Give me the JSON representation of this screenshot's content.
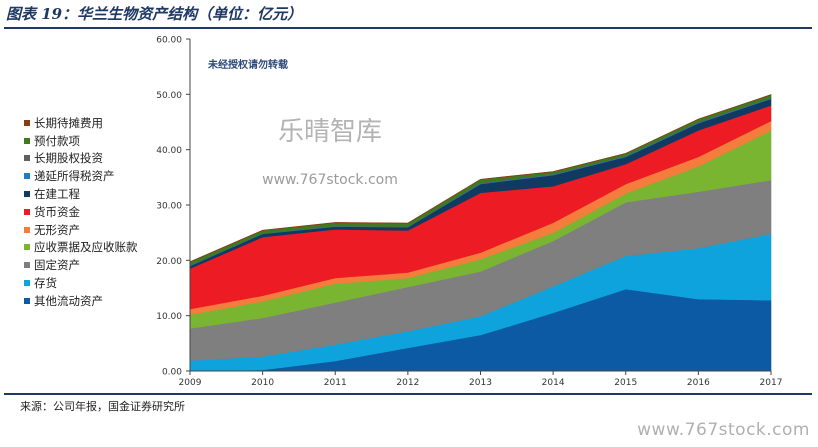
{
  "header": {
    "title": "图表 19：华兰生物资产结构（单位：亿元）"
  },
  "footer": {
    "source": "来源：公司年报，国金证券研究所",
    "watermark_url": "www.767stock.com"
  },
  "watermarks": {
    "notice": "未经授权请勿转载",
    "brand": "乐晴智库",
    "url": "www.767stock.com"
  },
  "chart_data": {
    "type": "area",
    "stacked": true,
    "x": [
      "2009",
      "2010",
      "2011",
      "2012",
      "2013",
      "2014",
      "2015",
      "2016",
      "2017"
    ],
    "ylim": [
      0,
      60
    ],
    "yticks": [
      "0.00",
      "10.00",
      "20.00",
      "30.00",
      "40.00",
      "50.00",
      "60.00"
    ],
    "grid": false,
    "legend_position": "left",
    "series": [
      {
        "name": "其他流动资产",
        "color": "#0b5aa3",
        "values": [
          0.0,
          0.2,
          1.8,
          4.2,
          6.5,
          10.5,
          14.8,
          13.0,
          12.8
        ]
      },
      {
        "name": "存货",
        "color": "#0ea3dc",
        "values": [
          1.9,
          2.4,
          3.0,
          3.0,
          3.4,
          4.8,
          6.0,
          9.2,
          12.0
        ]
      },
      {
        "name": "固定资产",
        "color": "#7f7f7f",
        "values": [
          5.8,
          7.0,
          7.6,
          8.0,
          8.1,
          8.2,
          9.7,
          10.2,
          9.7
        ]
      },
      {
        "name": "应收票据及应收账款",
        "color": "#7ab531",
        "values": [
          2.5,
          3.0,
          3.4,
          1.6,
          2.2,
          1.5,
          1.6,
          4.6,
          9.0
        ]
      },
      {
        "name": "无形资产",
        "color": "#f47c3c",
        "values": [
          1.0,
          1.0,
          1.0,
          1.0,
          1.2,
          1.8,
          1.7,
          1.7,
          1.7
        ]
      },
      {
        "name": "货币资金",
        "color": "#ed1c24",
        "values": [
          7.3,
          10.6,
          8.8,
          7.6,
          10.8,
          6.6,
          3.6,
          4.8,
          2.8
        ]
      },
      {
        "name": "在建工程",
        "color": "#113a63",
        "values": [
          0.5,
          0.6,
          0.5,
          0.6,
          1.6,
          2.0,
          1.3,
          1.3,
          1.2
        ]
      },
      {
        "name": "递延所得税资产",
        "color": "#1d7fbf",
        "values": [
          0.05,
          0.05,
          0.05,
          0.05,
          0.1,
          0.1,
          0.1,
          0.1,
          0.1
        ]
      },
      {
        "name": "长期股权投资",
        "color": "#5f5f5f",
        "values": [
          0.05,
          0.05,
          0.05,
          0.05,
          0.1,
          0.1,
          0.1,
          0.1,
          0.1
        ]
      },
      {
        "name": "预付款项",
        "color": "#3f7a1f",
        "values": [
          0.6,
          0.5,
          0.6,
          0.6,
          0.6,
          0.4,
          0.4,
          0.5,
          0.5
        ]
      },
      {
        "name": "长期待摊费用",
        "color": "#8a3b12",
        "values": [
          0.05,
          0.05,
          0.05,
          0.05,
          0.05,
          0.05,
          0.05,
          0.05,
          0.05
        ]
      }
    ]
  }
}
